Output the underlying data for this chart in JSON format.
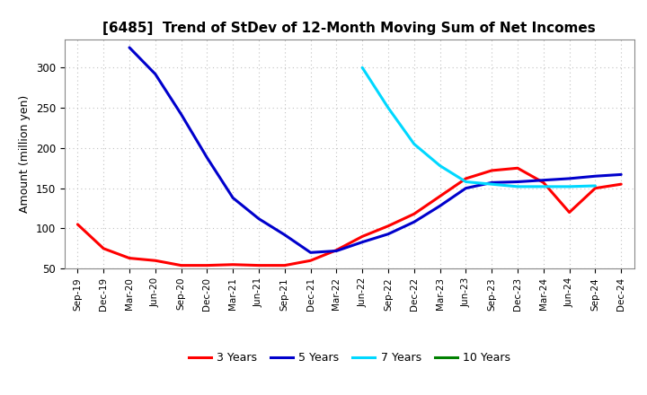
{
  "title": "[6485]  Trend of StDev of 12-Month Moving Sum of Net Incomes",
  "ylabel": "Amount (million yen)",
  "background_color": "#ffffff",
  "grid_color": "#b0b0b0",
  "ylim": [
    50,
    335
  ],
  "yticks": [
    50,
    100,
    150,
    200,
    250,
    300
  ],
  "x_labels": [
    "Sep-19",
    "Dec-19",
    "Mar-20",
    "Jun-20",
    "Sep-20",
    "Dec-20",
    "Mar-21",
    "Jun-21",
    "Sep-21",
    "Dec-21",
    "Mar-22",
    "Jun-22",
    "Sep-22",
    "Dec-22",
    "Mar-23",
    "Jun-23",
    "Sep-23",
    "Dec-23",
    "Mar-24",
    "Jun-24",
    "Sep-24",
    "Dec-24"
  ],
  "series": {
    "3 Years": {
      "color": "#ff0000",
      "linewidth": 2.2,
      "values": [
        105,
        75,
        63,
        60,
        54,
        54,
        55,
        54,
        54,
        60,
        73,
        90,
        103,
        118,
        140,
        162,
        172,
        175,
        157,
        120,
        150,
        155
      ]
    },
    "5 Years": {
      "color": "#0000cc",
      "linewidth": 2.2,
      "values": [
        null,
        null,
        325,
        292,
        242,
        188,
        138,
        112,
        92,
        70,
        72,
        83,
        93,
        108,
        128,
        150,
        157,
        158,
        160,
        162,
        165,
        167
      ]
    },
    "7 Years": {
      "color": "#00d8ff",
      "linewidth": 2.2,
      "values": [
        null,
        null,
        null,
        null,
        null,
        null,
        null,
        null,
        null,
        null,
        null,
        300,
        250,
        205,
        178,
        158,
        155,
        152,
        152,
        152,
        153,
        null
      ]
    },
    "10 Years": {
      "color": "#008000",
      "linewidth": 2.2,
      "values": [
        null,
        null,
        null,
        null,
        null,
        null,
        null,
        null,
        null,
        null,
        null,
        null,
        null,
        null,
        null,
        null,
        null,
        null,
        null,
        null,
        null,
        null
      ]
    }
  }
}
